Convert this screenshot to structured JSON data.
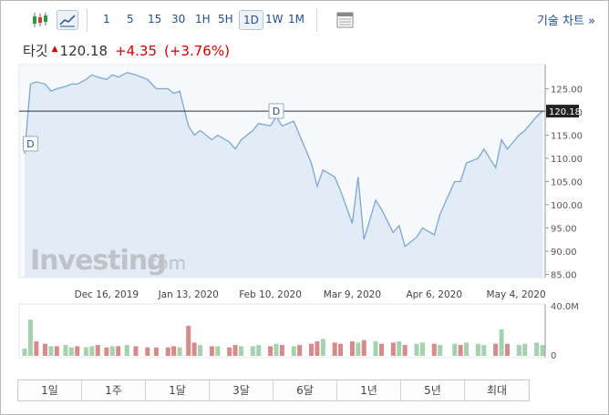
{
  "toolbar": {
    "timeframes": [
      "1",
      "5",
      "15",
      "30",
      "1H",
      "5H",
      "1D",
      "1W",
      "1M"
    ],
    "selected_timeframe": "1D",
    "technical_chart_link": "기술 차트 »",
    "icons": [
      "candlestick-icon",
      "line-chart-icon",
      "table-icon"
    ]
  },
  "header": {
    "label": "타깃",
    "arrow": "▲",
    "price": "120.18",
    "change": "+4.35",
    "change_pct": "(+3.76%)"
  },
  "colors": {
    "accent": "#1f4e96",
    "area_fill": "#e1ecf7",
    "line": "#7da6d2",
    "volume_up": "#a6d1ae",
    "volume_down": "#d78a8a",
    "last_price_bg": "#222222"
  },
  "watermark": {
    "brand": "Investing",
    "suffix": ".com"
  },
  "markers": [
    {
      "label": "D",
      "x": "2019-11-20",
      "price": 115
    },
    {
      "label": "D",
      "x": "2020-02-12",
      "price": 119
    }
  ],
  "chart_data": {
    "type": "line",
    "title": "",
    "x_dates": [
      "2019-11-18",
      "2019-11-20",
      "2019-11-22",
      "2019-11-25",
      "2019-11-27",
      "2019-11-29",
      "2019-12-02",
      "2019-12-04",
      "2019-12-06",
      "2019-12-09",
      "2019-12-11",
      "2019-12-13",
      "2019-12-16",
      "2019-12-18",
      "2019-12-20",
      "2019-12-23",
      "2019-12-26",
      "2019-12-30",
      "2020-01-02",
      "2020-01-06",
      "2020-01-08",
      "2020-01-10",
      "2020-01-13",
      "2020-01-15",
      "2020-01-17",
      "2020-01-21",
      "2020-01-23",
      "2020-01-27",
      "2020-01-29",
      "2020-01-31",
      "2020-02-04",
      "2020-02-06",
      "2020-02-10",
      "2020-02-12",
      "2020-02-14",
      "2020-02-18",
      "2020-02-20",
      "2020-02-24",
      "2020-02-26",
      "2020-02-28",
      "2020-03-03",
      "2020-03-05",
      "2020-03-09",
      "2020-03-11",
      "2020-03-13",
      "2020-03-17",
      "2020-03-19",
      "2020-03-23",
      "2020-03-25",
      "2020-03-27",
      "2020-03-31",
      "2020-04-02",
      "2020-04-06",
      "2020-04-08",
      "2020-04-13",
      "2020-04-15",
      "2020-04-17",
      "2020-04-21",
      "2020-04-23",
      "2020-04-27",
      "2020-04-29",
      "2020-05-01",
      "2020-05-05",
      "2020-05-07",
      "2020-05-11",
      "2020-05-13"
    ],
    "y": [
      111,
      126,
      126.5,
      126,
      124.5,
      125,
      125.5,
      126,
      126,
      127,
      128,
      127.5,
      127,
      128,
      127.5,
      128.5,
      128,
      127,
      125,
      125,
      124,
      124.5,
      117,
      115,
      116,
      114,
      115,
      113.5,
      112,
      114,
      116,
      117.5,
      117,
      119,
      117,
      118,
      115,
      109,
      104,
      107.5,
      106,
      103,
      96,
      106,
      92.5,
      101,
      99,
      94,
      95.5,
      91,
      93,
      95,
      93.5,
      98,
      105,
      105,
      109,
      110,
      112,
      108,
      114,
      112,
      115,
      116,
      119,
      120.18
    ],
    "volume": [
      6,
      30,
      12,
      10,
      8,
      8,
      9,
      7,
      8,
      7,
      8,
      9,
      7,
      8,
      8,
      9,
      8,
      7,
      7,
      7,
      8,
      7,
      25,
      11,
      9,
      8,
      8,
      7,
      9,
      8,
      8,
      9,
      8,
      10,
      9,
      8,
      9,
      10,
      12,
      14,
      11,
      10,
      12,
      11,
      13,
      12,
      10,
      11,
      12,
      9,
      10,
      11,
      10,
      9,
      10,
      9,
      11,
      10,
      9,
      10,
      22,
      10,
      9,
      10,
      11,
      9
    ],
    "volume_dir": [
      "up",
      "up",
      "down",
      "down",
      "up",
      "down",
      "up",
      "up",
      "down",
      "up",
      "up",
      "down",
      "down",
      "up",
      "down",
      "up",
      "down",
      "down",
      "down",
      "down",
      "down",
      "up",
      "down",
      "down",
      "up",
      "down",
      "up",
      "down",
      "down",
      "up",
      "up",
      "up",
      "down",
      "up",
      "down",
      "up",
      "down",
      "down",
      "down",
      "up",
      "down",
      "down",
      "down",
      "up",
      "down",
      "up",
      "down",
      "down",
      "up",
      "down",
      "up",
      "up",
      "down",
      "up",
      "up",
      "down",
      "up",
      "up",
      "up",
      "down",
      "up",
      "down",
      "up",
      "up",
      "up",
      "up"
    ],
    "y_ticks": [
      "125.00",
      "120.00",
      "115.00",
      "110.00",
      "105.00",
      "100.00",
      "95.00",
      "90.00",
      "85.00"
    ],
    "ylim": [
      84.3,
      130.2
    ],
    "x_tick_labels": [
      "Dec 16, 2019",
      "Jan 13, 2020",
      "Feb 10, 2020",
      "Mar 9, 2020",
      "Apr 6, 2020",
      "May 4, 2020"
    ],
    "x_tick_dates": [
      "2019-12-16",
      "2020-01-13",
      "2020-02-10",
      "2020-03-09",
      "2020-04-06",
      "2020-05-04"
    ],
    "volume_max_label": "40.0M",
    "volume_min_label": "0",
    "volume_max": 40,
    "last_price": "120.18",
    "grid": false
  },
  "period_bar": [
    "1일",
    "1주",
    "1달",
    "3달",
    "6달",
    "1년",
    "5년",
    "최대"
  ]
}
